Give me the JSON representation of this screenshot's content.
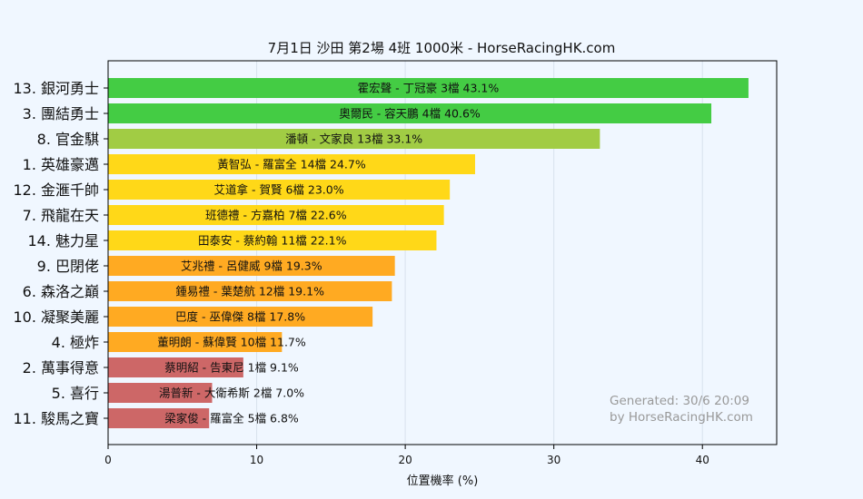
{
  "chart_data": {
    "type": "bar",
    "orientation": "horizontal",
    "title": "7月1日  沙田  第2場  4班  1000米 - HorseRacingHK.com",
    "xlabel": "位置機率 (%)",
    "xlim": [
      0,
      45
    ],
    "xticks": [
      "0",
      "10",
      "20",
      "30",
      "40"
    ],
    "grid": true,
    "categories": [
      "13. 銀河勇士",
      "3. 團結勇士",
      "8. 官金騏",
      "1. 英雄豪邁",
      "12. 金滙千帥",
      "7. 飛龍在天",
      "14. 魅力星",
      "9. 巴閉佬",
      "6. 森洛之巔",
      "10. 凝聚美麗",
      "4. 極炸",
      "2. 萬事得意",
      "5. 喜行",
      "11. 駿馬之寶"
    ],
    "values": [
      43.1,
      40.6,
      33.1,
      24.7,
      23.0,
      22.6,
      22.1,
      19.3,
      19.1,
      17.8,
      11.7,
      9.1,
      7.0,
      6.8
    ],
    "bar_labels": [
      "霍宏聲 - 丁冠豪 3檔  43.1%",
      "奧爾民 - 容天鵬 4檔  40.6%",
      "潘頓 - 文家良 13檔  33.1%",
      "黃智弘 - 羅富全 14檔  24.7%",
      "艾道拿 - 賀賢 6檔  23.0%",
      "班德禮 - 方嘉柏 7檔  22.6%",
      "田泰安 - 蔡約翰 11檔  22.1%",
      "艾兆禮 - 呂健威 9檔  19.3%",
      "鍾易禮 - 葉楚航 12檔  19.1%",
      "巴度 - 巫偉傑 8檔  17.8%",
      "董明朗 - 蘇偉賢 10檔  11.7%",
      "蔡明紹 - 告東尼 1檔  9.1%",
      "湯普新 - 大衛希斯 2檔  7.0%",
      "梁家俊 - 羅富全 5檔  6.8%"
    ],
    "colors": [
      "#44cc44",
      "#44cc44",
      "#a1cc44",
      "#ffd818",
      "#ffd818",
      "#ffd818",
      "#ffd818",
      "#ffaa22",
      "#ffaa22",
      "#ffaa22",
      "#ffaa22",
      "#cd6767",
      "#cd6767",
      "#cd6767"
    ]
  },
  "watermark": {
    "line1": "Generated: 30/6 20:09",
    "line2": "by HorseRacingHK.com"
  },
  "colors": {
    "background": "#f0f7ff",
    "plot_background": "#f0f7ff",
    "grid": "#d8e2ee",
    "watermark": "#999999"
  }
}
